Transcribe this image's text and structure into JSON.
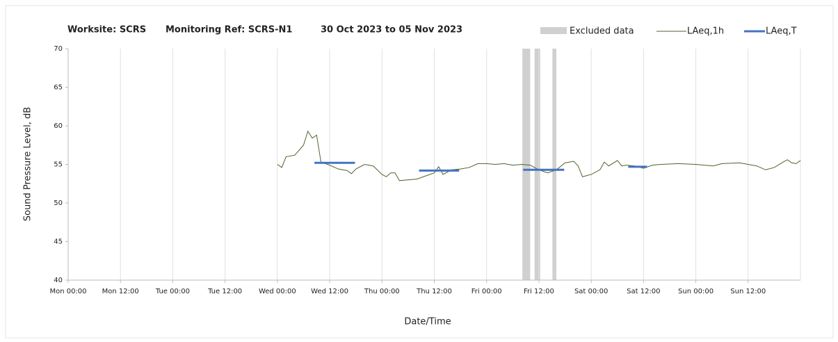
{
  "chart_data": {
    "type": "line",
    "title": [
      "Worksite: SCRS",
      "Monitoring Ref: SCRS-N1",
      "30 Oct 2023 to 05 Nov 2023"
    ],
    "x_label": "Date/Time",
    "y_label": "Sound Pressure Level, dB",
    "xlim": [
      0,
      168
    ],
    "xticks": [
      {
        "value": 0,
        "label": "Mon 00:00"
      },
      {
        "value": 12,
        "label": "Mon 12:00"
      },
      {
        "value": 24,
        "label": "Tue 00:00"
      },
      {
        "value": 36,
        "label": "Tue 12:00"
      },
      {
        "value": 48,
        "label": "Wed 00:00"
      },
      {
        "value": 60,
        "label": "Wed 12:00"
      },
      {
        "value": 72,
        "label": "Thu 00:00"
      },
      {
        "value": 84,
        "label": "Thu 12:00"
      },
      {
        "value": 96,
        "label": "Fri 00:00"
      },
      {
        "value": 108,
        "label": "Fri 12:00"
      },
      {
        "value": 120,
        "label": "Sat 00:00"
      },
      {
        "value": 132,
        "label": "Sat 12:00"
      },
      {
        "value": 144,
        "label": "Sun 00:00"
      },
      {
        "value": 156,
        "label": "Sun 12:00"
      }
    ],
    "ylim": [
      40,
      70
    ],
    "yticks": [
      40,
      45,
      50,
      55,
      60,
      65,
      70
    ],
    "grid": true,
    "excluded": {
      "name": "Excluded data",
      "color": "#d0d0d0",
      "ranges": [
        [
          104.2,
          106.0
        ],
        [
          107.0,
          108.3
        ],
        [
          111.1,
          112.0
        ]
      ]
    },
    "series": [
      {
        "name": "LAeq,1h",
        "color": "#4f6228",
        "x": [
          48,
          49,
          50,
          52,
          54,
          55,
          56,
          57,
          58,
          60,
          62,
          64,
          65,
          66,
          68,
          70,
          72,
          73,
          74,
          75,
          76,
          78,
          80,
          82,
          84,
          85,
          86,
          88,
          90,
          92,
          94,
          96,
          98,
          100,
          102,
          104,
          106,
          108,
          110,
          112,
          114,
          116,
          117,
          118,
          120,
          122,
          123,
          124,
          126,
          127,
          128,
          130,
          132,
          134,
          136,
          140,
          144,
          148,
          150,
          154,
          158,
          160,
          162,
          164,
          165,
          166,
          167,
          168
        ],
        "values": [
          55.0,
          54.6,
          56.0,
          56.2,
          57.5,
          59.3,
          58.4,
          58.8,
          55.3,
          54.9,
          54.4,
          54.2,
          53.8,
          54.4,
          55.0,
          54.8,
          53.7,
          53.4,
          53.9,
          53.9,
          52.9,
          53.0,
          53.1,
          53.5,
          53.9,
          54.7,
          53.7,
          54.3,
          54.4,
          54.6,
          55.1,
          55.1,
          55.0,
          55.1,
          54.9,
          55.0,
          54.9,
          54.3,
          53.9,
          54.3,
          55.2,
          55.4,
          54.8,
          53.4,
          53.7,
          54.3,
          55.3,
          54.8,
          55.5,
          54.8,
          54.9,
          54.8,
          54.5,
          54.9,
          55.0,
          55.1,
          55.0,
          54.8,
          55.1,
          55.2,
          54.8,
          54.3,
          54.6,
          55.3,
          55.6,
          55.2,
          55.1,
          55.5
        ]
      },
      {
        "name": "LAeq,T",
        "color": "#4472c4",
        "starts": [
          56.5,
          80.5,
          104.4,
          128.5
        ],
        "ends": [
          65.8,
          89.7,
          113.8,
          132.8
        ],
        "values": [
          55.2,
          54.2,
          54.3,
          54.7
        ]
      }
    ]
  }
}
